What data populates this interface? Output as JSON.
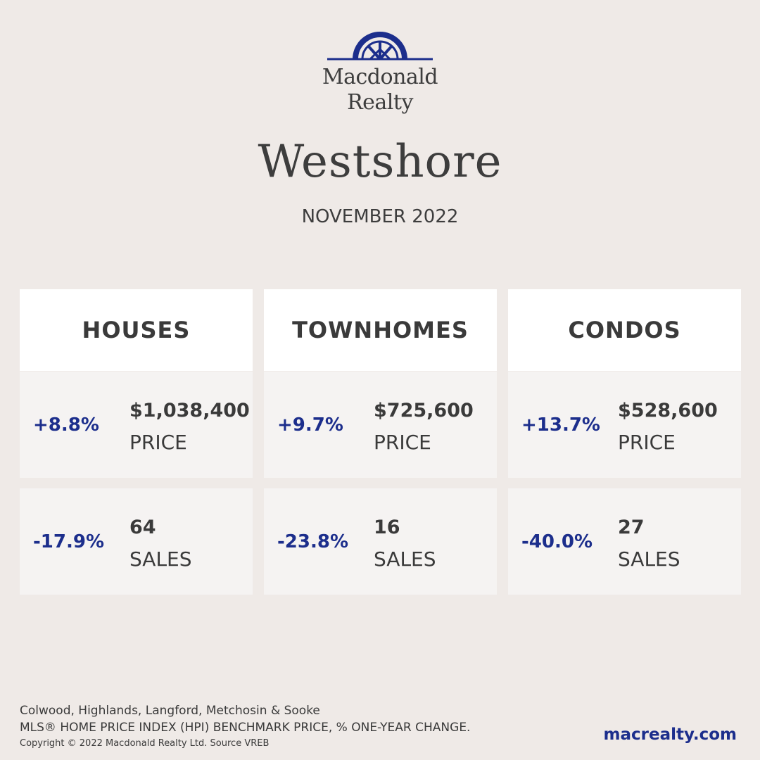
{
  "brand": {
    "name_line1": "Macdonald",
    "name_line2": "Realty",
    "color": "#1c2e8c",
    "icon": "sunrise-arch-logo-icon"
  },
  "header": {
    "title": "Westshore",
    "subtitle": "NOVEMBER 2022"
  },
  "categories": [
    {
      "name": "HOUSES",
      "price": {
        "change": "+8.8%",
        "value": "$1,038,400",
        "label": "PRICE"
      },
      "sales": {
        "change": "-17.9%",
        "value": "64",
        "label": "SALES"
      }
    },
    {
      "name": "TOWNHOMES",
      "price": {
        "change": "+9.7%",
        "value": "$725,600",
        "label": "PRICE"
      },
      "sales": {
        "change": "-23.8%",
        "value": "16",
        "label": "SALES"
      }
    },
    {
      "name": "CONDOS",
      "price": {
        "change": "+13.7%",
        "value": "$528,600",
        "label": "PRICE"
      },
      "sales": {
        "change": "-40.0%",
        "value": "27",
        "label": "SALES"
      }
    }
  ],
  "footer": {
    "areas": "Colwood, Highlands, Langford, Metchosin & Sooke",
    "note": "MLS® HOME PRICE INDEX (HPI) BENCHMARK PRICE, % ONE-YEAR CHANGE.",
    "copyright": "Copyright © 2022 Macdonald Realty Ltd. Source VREB",
    "website": "macrealty.com"
  },
  "colors": {
    "background": "#efeae7",
    "card_header": "#ffffff",
    "card_body": "#f5f3f2",
    "accent": "#1c2e8c",
    "text": "#3a3a3a"
  }
}
